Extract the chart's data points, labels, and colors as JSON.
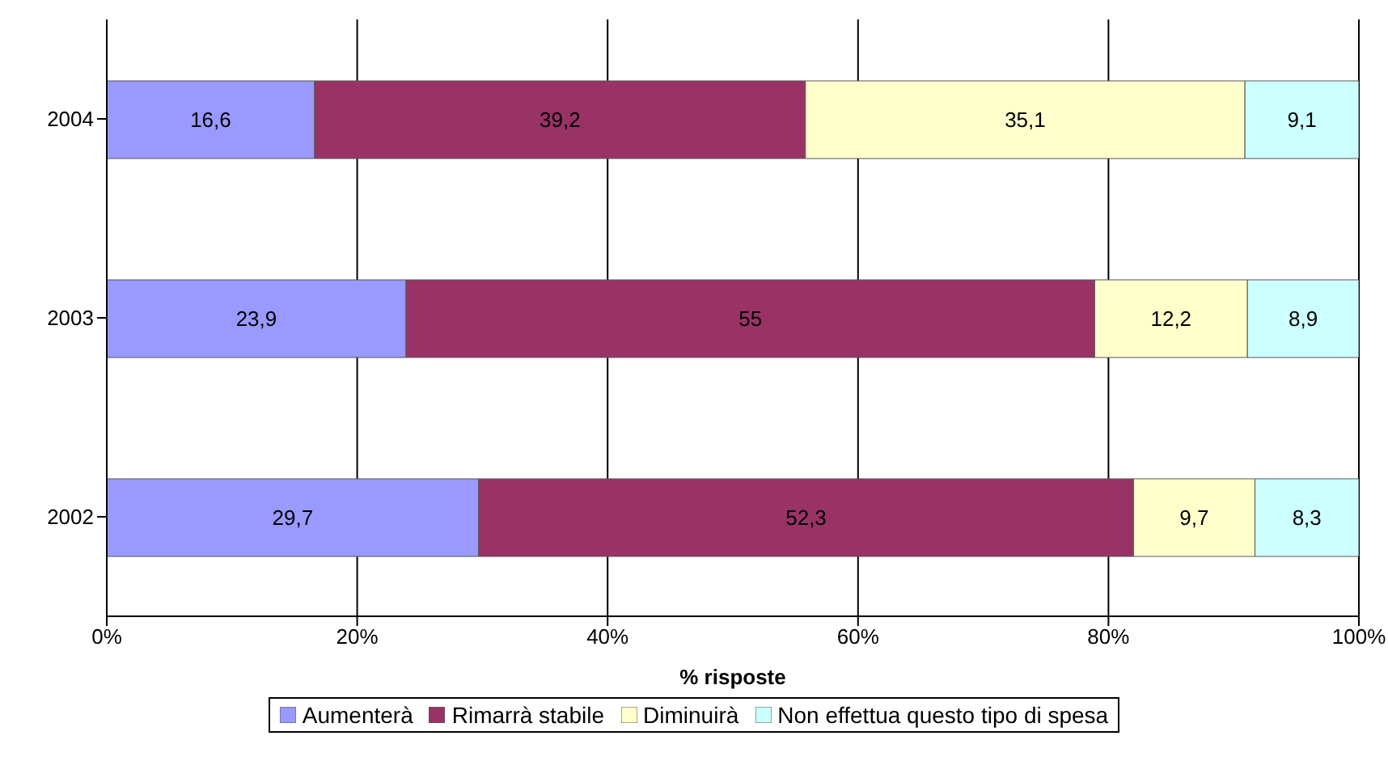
{
  "chart_data": {
    "type": "bar",
    "orientation": "horizontal",
    "stacked": true,
    "categories": [
      "2004",
      "2003",
      "2002"
    ],
    "series": [
      {
        "name": "Aumenterà",
        "color": "#9999ff",
        "values": [
          16.6,
          23.9,
          29.7
        ],
        "value_labels": [
          "16,6",
          "23,9",
          "29,7"
        ]
      },
      {
        "name": "Rimarrà stabile",
        "color": "#993366",
        "values": [
          39.2,
          55,
          52.3
        ],
        "value_labels": [
          "39,2",
          "55",
          "52,3"
        ]
      },
      {
        "name": "Diminuirà",
        "color": "#ffffcc",
        "values": [
          35.1,
          12.2,
          9.7
        ],
        "value_labels": [
          "35,1",
          "12,2",
          "9,7"
        ]
      },
      {
        "name": "Non effettua questo tipo di spesa",
        "color": "#ccffff",
        "values": [
          9.1,
          8.9,
          8.3
        ],
        "value_labels": [
          "9,1",
          "8,9",
          "8,3"
        ]
      }
    ],
    "xlim": [
      0,
      100
    ],
    "xticks": [
      {
        "value": 0,
        "label": "0%"
      },
      {
        "value": 20,
        "label": "20%"
      },
      {
        "value": 40,
        "label": "40%"
      },
      {
        "value": 60,
        "label": "60%"
      },
      {
        "value": 80,
        "label": "80%"
      },
      {
        "value": 100,
        "label": "100%"
      }
    ],
    "xlabel": "% risposte",
    "grid": "x",
    "legend": "bottom"
  }
}
